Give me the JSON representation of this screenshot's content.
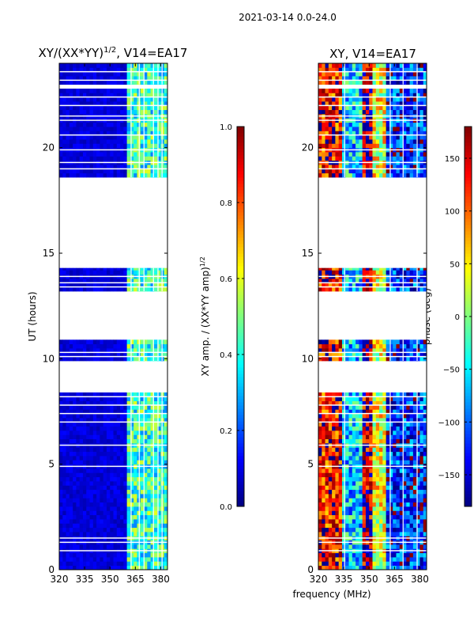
{
  "suptitle": "2021-03-14 0.0-24.0",
  "colormap": [
    "#00007f",
    "#0000ff",
    "#007fff",
    "#00ffff",
    "#7fff7f",
    "#ffff00",
    "#ff7f00",
    "#ff0000",
    "#7f0000"
  ],
  "chart_data": [
    {
      "type": "heatmap",
      "title_main": "XY/(XX*YY)",
      "title_exp": "1/2",
      "title_suffix": ", V14=EA17",
      "xlabel": "",
      "ylabel": "UT (hours)",
      "xlim": [
        320,
        384
      ],
      "ylim": [
        0,
        24
      ],
      "xticks": [
        320,
        335,
        350,
        365,
        380
      ],
      "yticks": [
        0,
        5,
        10,
        15,
        20
      ],
      "colorbar": {
        "label_main": "XY amp. / (XX*YY amp)",
        "label_exp": "1/2",
        "range": [
          0.0,
          1.0
        ],
        "ticks": [
          0.0,
          0.2,
          0.4,
          0.6,
          0.8,
          1.0
        ],
        "tick_labels": [
          "0.0",
          "0.2",
          "0.4",
          "0.6",
          "0.8",
          "1.0"
        ]
      },
      "data_blocks_ut": [
        [
          0.0,
          8.4
        ],
        [
          9.9,
          10.9
        ],
        [
          13.2,
          14.3
        ],
        [
          18.6,
          22.8
        ],
        [
          23.0,
          24.0
        ]
      ],
      "flagged_rows_ut": [
        0.9,
        1.3,
        1.5,
        4.9,
        5.9,
        7.0,
        7.4,
        7.8,
        8.2,
        10.1,
        10.3,
        13.4,
        13.6,
        13.9,
        19.0,
        19.3,
        19.9,
        20.6,
        21.3,
        21.5,
        22.0,
        22.4,
        23.2,
        23.6
      ],
      "flagged_cols_mhz": [
        362.5,
        367.3,
        370.1,
        375.7,
        378.4,
        380.8
      ],
      "low_band_level": 0.05,
      "high_band_start_mhz": 361
    },
    {
      "type": "heatmap",
      "title": "XY, V14=EA17",
      "xlabel": "frequency (MHz)",
      "ylabel": "",
      "xlim": [
        320,
        384
      ],
      "ylim": [
        0,
        24
      ],
      "xticks": [
        320,
        335,
        350,
        365,
        380
      ],
      "yticks": [
        0,
        5,
        10,
        15,
        20
      ],
      "colorbar": {
        "label": "phase (deg)",
        "range": [
          -180,
          180
        ],
        "ticks": [
          -150,
          -100,
          -50,
          0,
          50,
          100,
          150
        ],
        "tick_labels": [
          "−150",
          "−100",
          "−50",
          "0",
          "50",
          "100",
          "150"
        ]
      },
      "data_blocks_ut": [
        [
          0.0,
          8.4
        ],
        [
          9.9,
          10.9
        ],
        [
          13.2,
          14.3
        ],
        [
          18.6,
          22.8
        ],
        [
          23.0,
          24.0
        ]
      ],
      "flagged_rows_ut": [
        0.9,
        1.3,
        1.5,
        4.9,
        5.9,
        7.0,
        7.4,
        7.8,
        8.2,
        10.1,
        10.3,
        13.4,
        13.6,
        13.9,
        19.0,
        19.3,
        19.9,
        20.6,
        21.3,
        21.5,
        22.0,
        22.4,
        23.2,
        23.6
      ],
      "flagged_cols_mhz": [
        335.5,
        362.5,
        370.1,
        378.4
      ],
      "bands": [
        {
          "from": 320,
          "to": 334,
          "phase": 130
        },
        {
          "from": 334,
          "to": 346,
          "phase": -60
        },
        {
          "from": 346,
          "to": 353,
          "phase": 160
        },
        {
          "from": 353,
          "to": 361,
          "phase": 40
        },
        {
          "from": 361,
          "to": 384,
          "phase": -120
        }
      ]
    }
  ]
}
